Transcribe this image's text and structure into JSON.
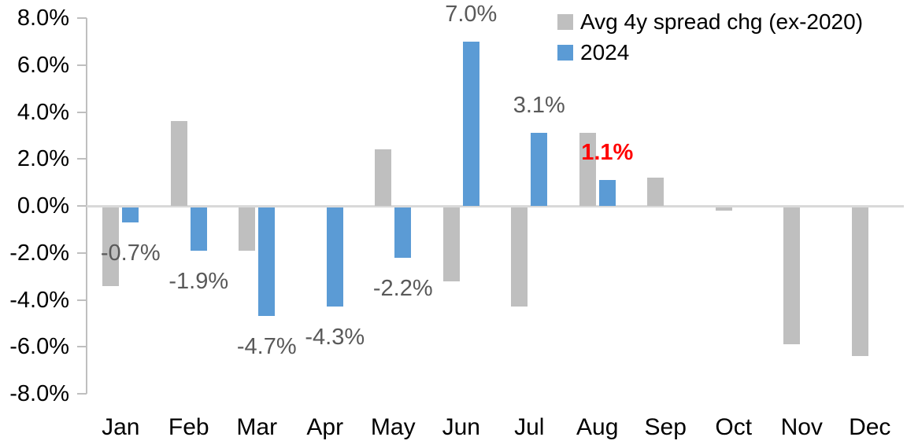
{
  "chart_data": {
    "type": "bar",
    "title": "",
    "categories": [
      "Jan",
      "Feb",
      "Mar",
      "Apr",
      "May",
      "Jun",
      "Jul",
      "Aug",
      "Sep",
      "Oct",
      "Nov",
      "Dec"
    ],
    "series": [
      {
        "name": "Avg 4y spread chg (ex-2020)",
        "color": "#bfbfbf",
        "values": [
          -3.4,
          3.6,
          -1.9,
          0.0,
          2.4,
          -3.2,
          -4.3,
          3.1,
          1.2,
          -0.2,
          -5.9,
          -6.4
        ]
      },
      {
        "name": "2024",
        "color": "#5b9bd5",
        "values": [
          -0.7,
          -1.9,
          -4.7,
          -4.3,
          -2.2,
          7.0,
          3.1,
          1.1,
          null,
          null,
          null,
          null
        ],
        "point_labels": [
          {
            "text": "-0.7%",
            "color": "#595959",
            "bold": false
          },
          {
            "text": "-1.9%",
            "color": "#595959",
            "bold": false
          },
          {
            "text": "-4.7%",
            "color": "#595959",
            "bold": false
          },
          {
            "text": "-4.3%",
            "color": "#595959",
            "bold": false
          },
          {
            "text": "-2.2%",
            "color": "#595959",
            "bold": false
          },
          {
            "text": "7.0%",
            "color": "#595959",
            "bold": false
          },
          {
            "text": "3.1%",
            "color": "#595959",
            "bold": false
          },
          {
            "text": "1.1%",
            "color": "#ff0000",
            "bold": true
          },
          null,
          null,
          null,
          null
        ]
      }
    ],
    "ylim": [
      -8,
      8
    ],
    "ylabel": "",
    "xlabel": "",
    "y_ticks": [
      {
        "value": 8,
        "label": "8.0%"
      },
      {
        "value": 6,
        "label": "6.0%"
      },
      {
        "value": 4,
        "label": "4.0%"
      },
      {
        "value": 2,
        "label": "2.0%"
      },
      {
        "value": 0,
        "label": "0.0%"
      },
      {
        "value": -2,
        "label": "-2.0%"
      },
      {
        "value": -4,
        "label": "-4.0%"
      },
      {
        "value": -6,
        "label": "-6.0%"
      },
      {
        "value": -8,
        "label": "-8.0%"
      }
    ],
    "grid": "zero-line-only",
    "legend_position": "top-right",
    "colors": {
      "axis_line": "#bfbfbf",
      "zero_line": "#d9d9d9",
      "axis_text": "#000000",
      "data_label_default": "#595959",
      "data_label_highlight": "#ff0000"
    }
  }
}
